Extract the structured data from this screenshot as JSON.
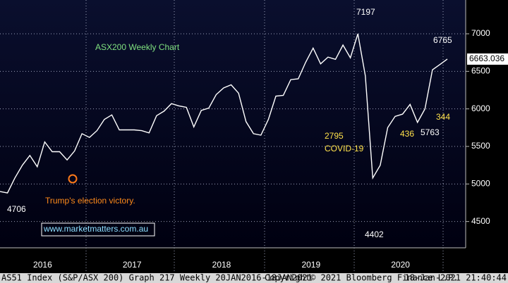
{
  "chart_data": {
    "type": "line",
    "title": "ASX200 Weekly Chart",
    "categories": [
      null,
      null,
      null,
      null,
      null,
      null,
      "2016",
      null,
      null,
      null,
      null,
      null,
      null,
      null,
      null,
      null,
      null,
      null,
      "2017",
      null,
      null,
      null,
      null,
      null,
      null,
      null,
      null,
      null,
      null,
      null,
      "2018",
      null,
      null,
      null,
      null,
      null,
      null,
      null,
      null,
      null,
      null,
      null,
      "2019",
      null,
      null,
      null,
      null,
      null,
      null,
      null,
      null,
      null,
      null,
      null,
      "2020",
      null,
      null,
      null,
      null,
      null,
      null
    ],
    "series": [
      {
        "name": "AS51 Index",
        "color": "#ffffff",
        "values": [
          4900,
          4880,
          5080,
          5250,
          5380,
          5230,
          5560,
          5430,
          5430,
          5320,
          5440,
          5670,
          5620,
          5710,
          5860,
          5920,
          5720,
          5720,
          5720,
          5710,
          5680,
          5910,
          5970,
          6070,
          6040,
          6020,
          5760,
          5980,
          6010,
          6190,
          6280,
          6320,
          6210,
          5830,
          5670,
          5650,
          5860,
          6170,
          6180,
          6390,
          6400,
          6620,
          6810,
          6600,
          6690,
          6660,
          6850,
          6680,
          7000,
          6440,
          5080,
          5250,
          5750,
          5900,
          5930,
          6060,
          5820,
          6000,
          6520,
          6590,
          6663
        ]
      }
    ],
    "ylim": [
      4150,
      7450
    ],
    "yticks": [
      4500,
      5000,
      5500,
      6000,
      6500,
      7000
    ],
    "grid": true,
    "last_price": 6663.036,
    "annotations": [
      "7197",
      "6765",
      "2795",
      "COVID-19",
      "436",
      "5763",
      "344",
      "4402",
      "4706",
      "Trump's election victory.",
      "www.marketmatters.com.au"
    ],
    "footer": [
      "AS51 Index (S&P/ASX 200) Graph 217  Weekly 20JAN2016-18JAN2021",
      "Copyright© 2021 Bloomberg Finance L.P.",
      "18-Jan-2021 21:40:44"
    ]
  }
}
